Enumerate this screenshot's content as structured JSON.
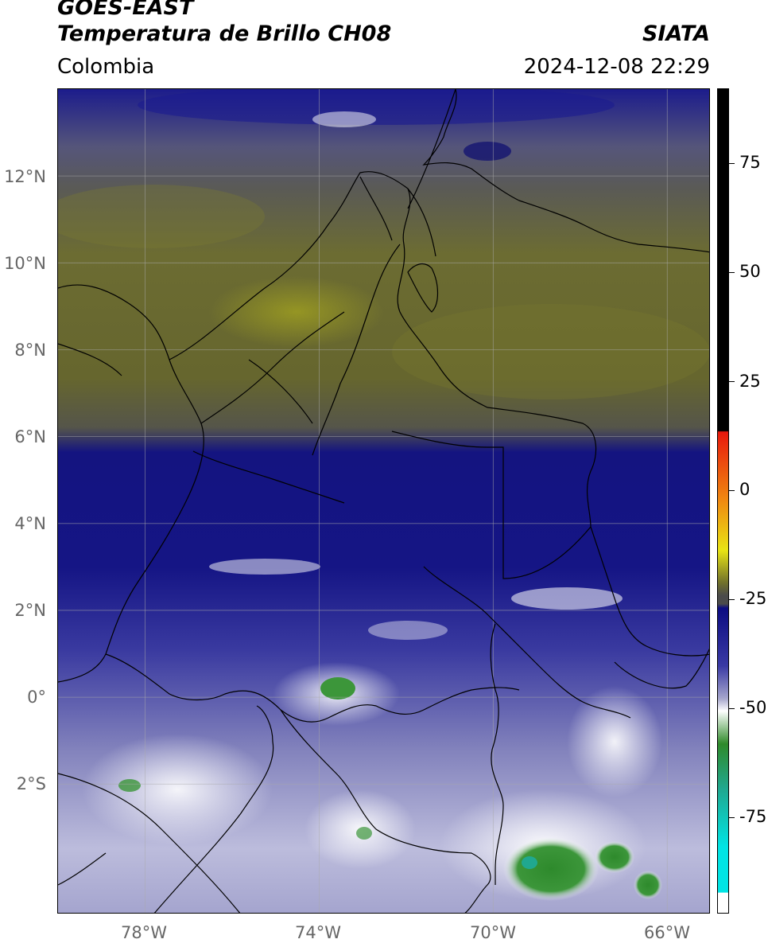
{
  "header": {
    "satellite": "GOES-EAST",
    "product": "Temperatura de Brillo CH08",
    "organization": "SIATA",
    "region": "Colombia",
    "datetime": "2024-12-08 22:29"
  },
  "map": {
    "lon_range": [
      -80,
      -65
    ],
    "lat_range": [
      -5,
      14
    ],
    "lat_labels": [
      "12°N",
      "10°N",
      "8°N",
      "6°N",
      "4°N",
      "2°N",
      "0°",
      "2°S"
    ],
    "lon_labels": [
      "78°W",
      "74°W",
      "70°W",
      "66°W"
    ],
    "gridlines": true
  },
  "colorbar": {
    "range": [
      -95,
      90
    ],
    "tick_labels": [
      "75",
      "50",
      "25",
      "0",
      "-25",
      "-50",
      "-75"
    ],
    "colors": {
      "hot": "#000000",
      "red": "#e8180c",
      "orange": "#f08a10",
      "yellow": "#e8e414",
      "olive": "#6f6f2c",
      "gray": "#4b4b4b",
      "navy": "#0c0c82",
      "blue": "#3a3aa4",
      "lavender": "#a6a6cc",
      "white": "#ffffff",
      "green": "#2f8a2a",
      "teal": "#20a890",
      "cyan": "#00e4e4"
    }
  }
}
